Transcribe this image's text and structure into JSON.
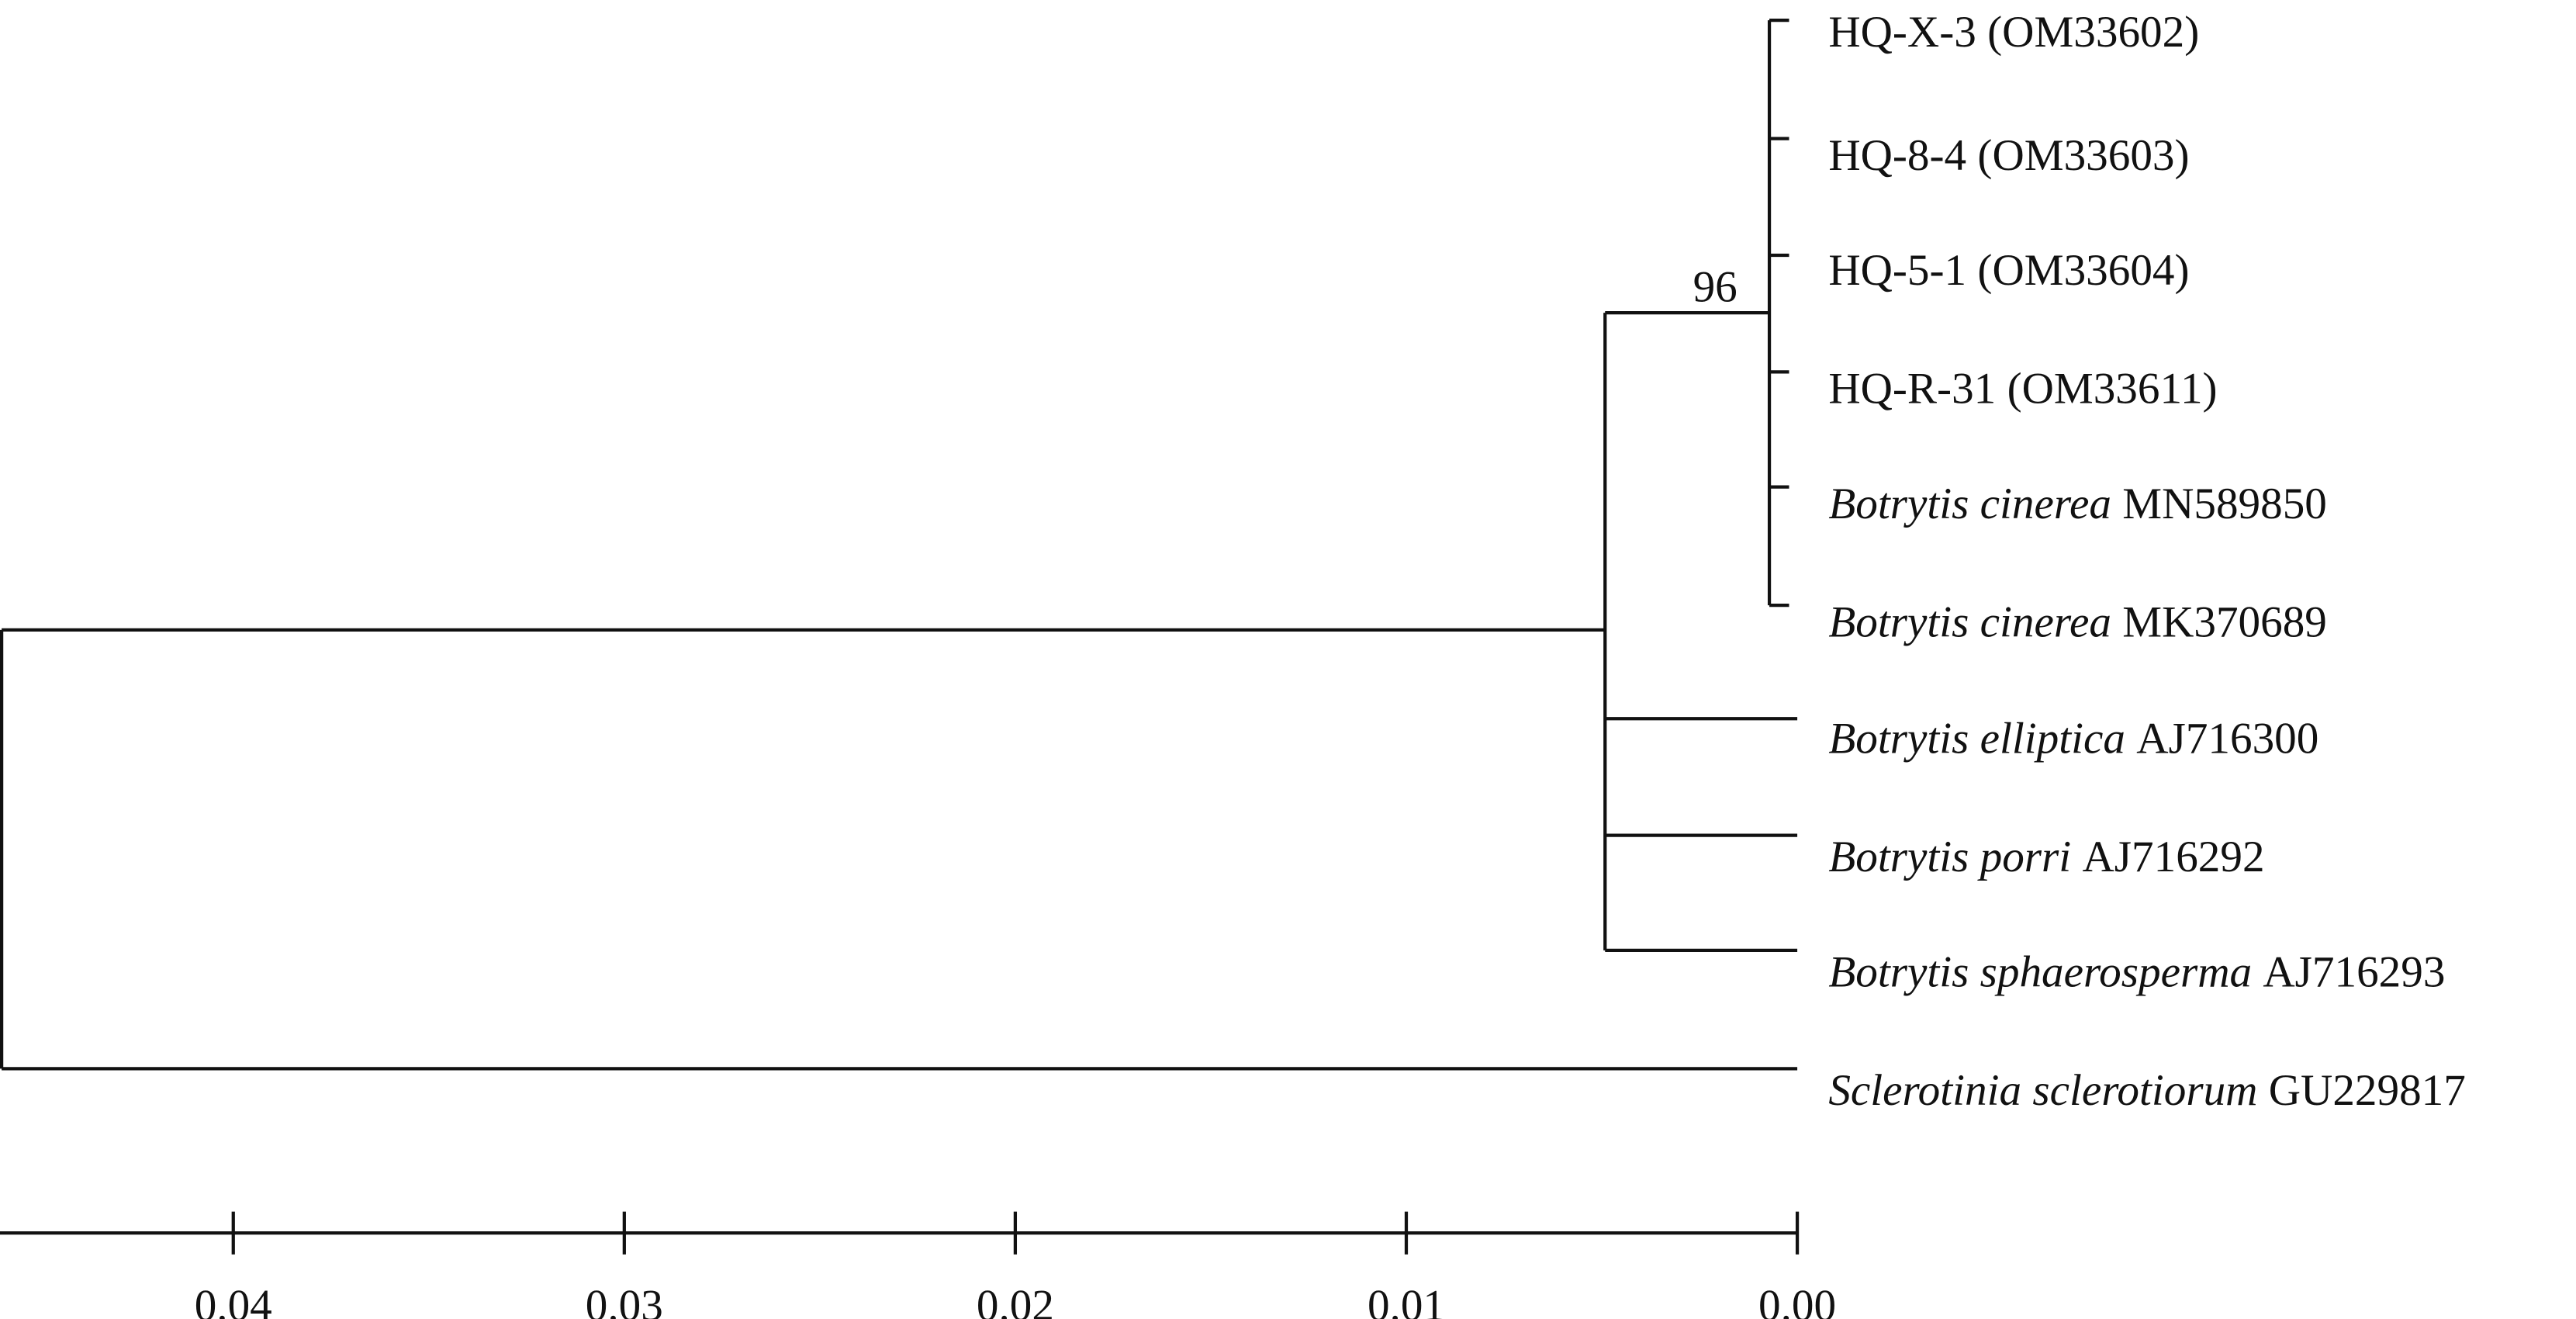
{
  "tree": {
    "leaves": [
      {
        "text": "HQ-X-3 (OM33602)"
      },
      {
        "text": "HQ-8-4 (OM33603)"
      },
      {
        "text": "HQ-5-1 (OM33604)"
      },
      {
        "text": "HQ-R-31 (OM33611)"
      },
      {
        "italic": "Botrytis cinerea",
        "text": "MN589850"
      },
      {
        "italic": "Botrytis cinerea",
        "text": "MK370689"
      },
      {
        "italic": "Botrytis elliptica",
        "text": "AJ716300"
      },
      {
        "italic": "Botrytis porri",
        "text": "AJ716292"
      },
      {
        "italic": "Botrytis sphaerosperma",
        "text": "AJ716293"
      },
      {
        "italic": "Sclerotinia sclerotiorum",
        "text": "GU229817"
      }
    ],
    "bootstrap": "96"
  },
  "scale_axis": {
    "ticks": [
      {
        "value": 0.04,
        "label": "0.04"
      },
      {
        "value": 0.03,
        "label": "0.03"
      },
      {
        "value": 0.02,
        "label": "0.02"
      },
      {
        "value": 0.01,
        "label": "0.01"
      },
      {
        "value": 0,
        "label": "0.00"
      }
    ]
  }
}
